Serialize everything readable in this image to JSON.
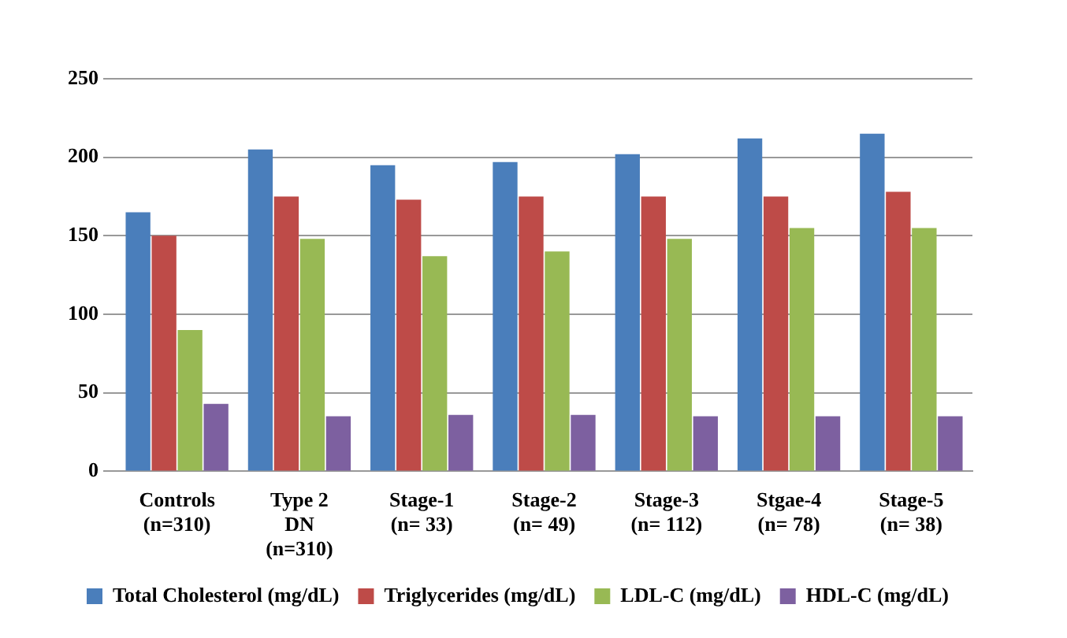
{
  "chart_data": {
    "type": "bar",
    "categories": [
      "Controls\n(n=310)",
      "Type 2\nDN\n(n=310)",
      "Stage-1\n(n= 33)",
      "Stage-2\n(n= 49)",
      "Stage-3\n(n= 112)",
      "Stgae-4\n(n= 78)",
      "Stage-5\n(n= 38)"
    ],
    "series": [
      {
        "name": "Total Cholesterol (mg/dL)",
        "color": "#4a7ebb",
        "values": [
          165,
          205,
          195,
          197,
          202,
          212,
          215
        ]
      },
      {
        "name": "Triglycerides (mg/dL)",
        "color": "#be4b48",
        "values": [
          150,
          175,
          173,
          175,
          175,
          175,
          178
        ]
      },
      {
        "name": "LDL-C (mg/dL)",
        "color": "#98b954",
        "values": [
          90,
          148,
          137,
          140,
          148,
          155,
          155
        ]
      },
      {
        "name": "HDL-C (mg/dL)",
        "color": "#7d60a0",
        "values": [
          43,
          35,
          36,
          36,
          35,
          35,
          35
        ]
      }
    ],
    "ylim": [
      0,
      250
    ],
    "yticks": [
      0,
      50,
      100,
      150,
      200,
      250
    ],
    "grid": "y",
    "legend": "bottom"
  }
}
